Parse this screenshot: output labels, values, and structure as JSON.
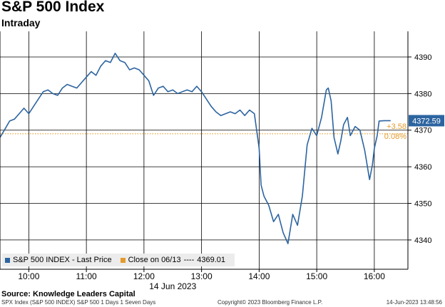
{
  "header": {
    "title": "S&P 500 Index",
    "subtitle": "Intraday"
  },
  "legend": {
    "series_label": "S&P 500 INDEX - Last Price",
    "ref_label": "Close on 06/13",
    "ref_dashes": "----",
    "ref_value": "4369.01"
  },
  "annotations": {
    "last_value_box": "4372.59",
    "change_points": "+3.58",
    "change_pct": "0.08%"
  },
  "source": "Source: Knowledge Leaders Capital",
  "footer": {
    "left": "SPX Index (S&P 500 INDEX) S&P 500 1 Days 1 Seven Days",
    "center": "Copyright© 2023 Bloomberg Finance L.P.",
    "right": "14-Jun-2023 13:48:56"
  },
  "colors": {
    "series": "#2c64a0",
    "reference": "#e59a2b",
    "grid": "#000000",
    "last_box": "#2c64a0"
  },
  "chart_data": {
    "type": "line",
    "title": "S&P 500 Index",
    "subtitle": "Intraday",
    "xlabel": "14 Jun 2023",
    "ylabel": "",
    "x_ticks": [
      "10:00",
      "11:00",
      "12:00",
      "13:00",
      "14:00",
      "15:00",
      "16:00"
    ],
    "y_ticks": [
      4340,
      4350,
      4360,
      4370,
      4380,
      4390
    ],
    "xlim": [
      "09:30",
      "16:35"
    ],
    "ylim": [
      4332,
      4397
    ],
    "grid": true,
    "reference_line": {
      "label": "Close on 06/13",
      "value": 4369.01
    },
    "last_value": 4372.59,
    "change": "+3.58",
    "change_pct": "0.08%",
    "series": [
      {
        "name": "S&P 500 INDEX - Last Price",
        "points": [
          [
            "09:30",
            4368.0
          ],
          [
            "09:35",
            4370.2
          ],
          [
            "09:40",
            4372.5
          ],
          [
            "09:45",
            4373.0
          ],
          [
            "09:50",
            4374.5
          ],
          [
            "09:55",
            4376.0
          ],
          [
            "10:00",
            4374.5
          ],
          [
            "10:05",
            4376.5
          ],
          [
            "10:10",
            4378.5
          ],
          [
            "10:15",
            4380.5
          ],
          [
            "10:20",
            4381.0
          ],
          [
            "10:25",
            4380.0
          ],
          [
            "10:30",
            4379.5
          ],
          [
            "10:35",
            4381.5
          ],
          [
            "10:40",
            4382.5
          ],
          [
            "10:45",
            4382.0
          ],
          [
            "10:50",
            4381.5
          ],
          [
            "10:55",
            4383.0
          ],
          [
            "11:00",
            4384.5
          ],
          [
            "11:05",
            4386.0
          ],
          [
            "11:10",
            4385.0
          ],
          [
            "11:15",
            4387.5
          ],
          [
            "11:20",
            4389.0
          ],
          [
            "11:25",
            4388.5
          ],
          [
            "11:30",
            4391.0
          ],
          [
            "11:35",
            4389.0
          ],
          [
            "11:40",
            4388.5
          ],
          [
            "11:45",
            4386.5
          ],
          [
            "11:50",
            4387.0
          ],
          [
            "11:55",
            4386.5
          ],
          [
            "12:00",
            4385.0
          ],
          [
            "12:05",
            4383.5
          ],
          [
            "12:10",
            4379.5
          ],
          [
            "12:15",
            4381.5
          ],
          [
            "12:20",
            4382.0
          ],
          [
            "12:25",
            4380.5
          ],
          [
            "12:30",
            4381.0
          ],
          [
            "12:35",
            4380.0
          ],
          [
            "12:40",
            4380.5
          ],
          [
            "12:45",
            4381.0
          ],
          [
            "12:50",
            4380.5
          ],
          [
            "12:55",
            4382.0
          ],
          [
            "13:00",
            4380.5
          ],
          [
            "13:05",
            4378.5
          ],
          [
            "13:10",
            4376.5
          ],
          [
            "13:15",
            4375.0
          ],
          [
            "13:20",
            4374.0
          ],
          [
            "13:25",
            4374.5
          ],
          [
            "13:30",
            4375.0
          ],
          [
            "13:35",
            4374.5
          ],
          [
            "13:40",
            4375.5
          ],
          [
            "13:45",
            4374.0
          ],
          [
            "13:50",
            4375.5
          ],
          [
            "13:55",
            4374.5
          ],
          [
            "14:00",
            4365.0
          ],
          [
            "14:02",
            4355.0
          ],
          [
            "14:05",
            4352.0
          ],
          [
            "14:10",
            4349.5
          ],
          [
            "14:15",
            4345.0
          ],
          [
            "14:20",
            4347.0
          ],
          [
            "14:25",
            4342.0
          ],
          [
            "14:30",
            4339.0
          ],
          [
            "14:35",
            4347.0
          ],
          [
            "14:40",
            4344.0
          ],
          [
            "14:45",
            4352.0
          ],
          [
            "14:50",
            4366.0
          ],
          [
            "14:55",
            4370.5
          ],
          [
            "15:00",
            4368.5
          ],
          [
            "15:05",
            4373.5
          ],
          [
            "15:10",
            4381.0
          ],
          [
            "15:12",
            4381.5
          ],
          [
            "15:15",
            4378.0
          ],
          [
            "15:18",
            4368.0
          ],
          [
            "15:22",
            4363.5
          ],
          [
            "15:25",
            4367.0
          ],
          [
            "15:28",
            4371.5
          ],
          [
            "15:32",
            4373.5
          ],
          [
            "15:35",
            4368.5
          ],
          [
            "15:40",
            4371.0
          ],
          [
            "15:45",
            4370.0
          ],
          [
            "15:50",
            4364.5
          ],
          [
            "15:55",
            4356.5
          ],
          [
            "15:58",
            4360.5
          ],
          [
            "16:00",
            4365.0
          ],
          [
            "16:03",
            4368.5
          ],
          [
            "16:05",
            4372.5
          ],
          [
            "16:10",
            4372.6
          ],
          [
            "16:15",
            4372.6
          ],
          [
            "16:17",
            4372.59
          ]
        ]
      }
    ]
  }
}
